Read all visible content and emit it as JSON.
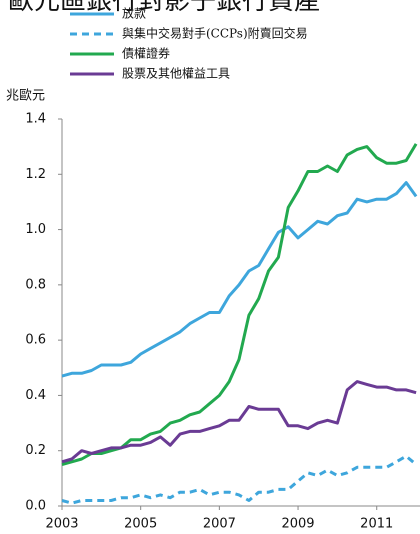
{
  "chart_data": {
    "type": "line",
    "title": "歐元區銀行對影子銀行資產",
    "y_label": "兆歐元",
    "x": [
      2003,
      2003.25,
      2003.5,
      2003.75,
      2004,
      2004.25,
      2004.5,
      2004.75,
      2005,
      2005.25,
      2005.5,
      2005.75,
      2006,
      2006.25,
      2006.5,
      2006.75,
      2007,
      2007.25,
      2007.5,
      2007.75,
      2008,
      2008.25,
      2008.5,
      2008.75,
      2009,
      2009.25,
      2009.5,
      2009.75,
      2010,
      2010.25,
      2010.5,
      2010.75,
      2011,
      2011.25,
      2011.5,
      2011.75,
      2012
    ],
    "series": [
      {
        "name": "放款",
        "color": "#3ea6dc",
        "dashed": false,
        "values": [
          0.47,
          0.48,
          0.48,
          0.49,
          0.51,
          0.51,
          0.51,
          0.52,
          0.55,
          0.57,
          0.59,
          0.61,
          0.63,
          0.66,
          0.68,
          0.7,
          0.7,
          0.76,
          0.8,
          0.85,
          0.87,
          0.93,
          0.99,
          1.01,
          0.97,
          1.0,
          1.03,
          1.02,
          1.05,
          1.06,
          1.11,
          1.1,
          1.11,
          1.11,
          1.13,
          1.17,
          1.12
        ]
      },
      {
        "name": "與集中交易對手(CCPs)附賣回交易",
        "color": "#3ea6dc",
        "dashed": true,
        "values": [
          0.02,
          0.01,
          0.02,
          0.02,
          0.02,
          0.02,
          0.03,
          0.03,
          0.04,
          0.03,
          0.04,
          0.03,
          0.05,
          0.05,
          0.06,
          0.04,
          0.05,
          0.05,
          0.04,
          0.02,
          0.05,
          0.05,
          0.06,
          0.06,
          0.09,
          0.12,
          0.11,
          0.13,
          0.11,
          0.12,
          0.14,
          0.14,
          0.14,
          0.14,
          0.16,
          0.18,
          0.15
        ]
      },
      {
        "name": "債權證券",
        "color": "#22a94f",
        "dashed": false,
        "values": [
          0.15,
          0.16,
          0.17,
          0.19,
          0.19,
          0.2,
          0.21,
          0.24,
          0.24,
          0.26,
          0.27,
          0.3,
          0.31,
          0.33,
          0.34,
          0.37,
          0.4,
          0.45,
          0.53,
          0.69,
          0.75,
          0.85,
          0.9,
          1.08,
          1.14,
          1.21,
          1.21,
          1.23,
          1.21,
          1.27,
          1.29,
          1.3,
          1.26,
          1.24,
          1.24,
          1.25,
          1.31
        ]
      },
      {
        "name": "股票及其他權益工具",
        "color": "#6a3b94",
        "dashed": false,
        "values": [
          0.16,
          0.17,
          0.2,
          0.19,
          0.2,
          0.21,
          0.21,
          0.22,
          0.22,
          0.23,
          0.25,
          0.22,
          0.26,
          0.27,
          0.27,
          0.28,
          0.29,
          0.31,
          0.31,
          0.36,
          0.35,
          0.35,
          0.35,
          0.29,
          0.29,
          0.28,
          0.3,
          0.31,
          0.3,
          0.42,
          0.45,
          0.44,
          0.43,
          0.43,
          0.42,
          0.42,
          0.41
        ]
      }
    ],
    "xlim": [
      2003,
      2012.1
    ],
    "xticks": [
      2003,
      2005,
      2007,
      2009,
      2011
    ],
    "ylim": [
      0,
      1.4
    ],
    "yticks": [
      {
        "value": 0,
        "label": "0.0"
      },
      0.2,
      0.4,
      0.6,
      0.8,
      {
        "value": 1,
        "label": "1.0"
      },
      1.2,
      1.4
    ],
    "grid": false
  }
}
